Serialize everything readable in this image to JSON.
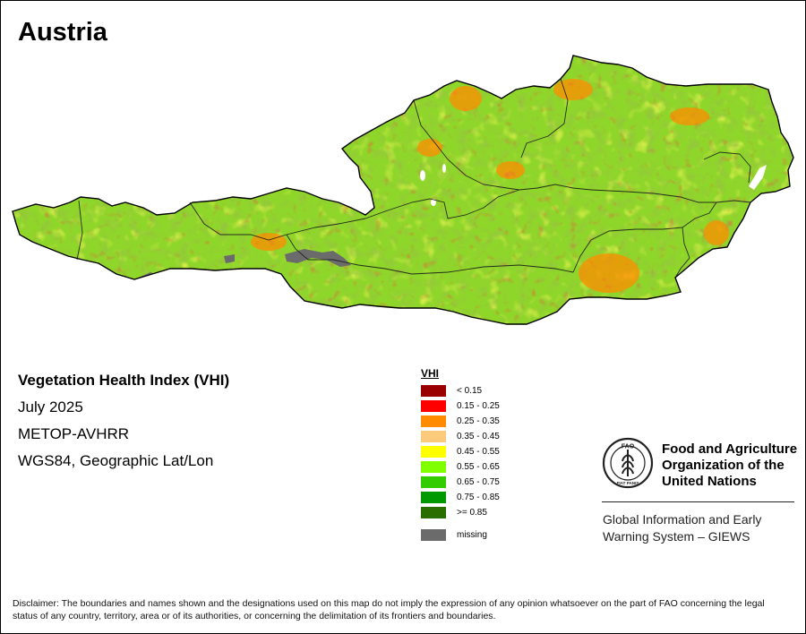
{
  "map": {
    "title": "Austria",
    "colors": {
      "background": "#ffffff",
      "border": "#000000",
      "lake": "#ffffff",
      "boundary": "#1a1a1a"
    }
  },
  "info": {
    "index_name": "Vegetation Health Index (VHI)",
    "period": "July 2025",
    "sensor": "METOP-AVHRR",
    "projection": "WGS84, Geographic Lat/Lon"
  },
  "legend": {
    "title": "VHI",
    "classes": [
      {
        "label": "< 0.15",
        "color": "#9b0000"
      },
      {
        "label": "0.15 - 0.25",
        "color": "#ff0000"
      },
      {
        "label": "0.25 - 0.35",
        "color": "#ff8c00"
      },
      {
        "label": "0.35 - 0.45",
        "color": "#fdc97a"
      },
      {
        "label": "0.45 - 0.55",
        "color": "#ffff00"
      },
      {
        "label": "0.55 - 0.65",
        "color": "#80ff00"
      },
      {
        "label": "0.65 - 0.75",
        "color": "#33cc00"
      },
      {
        "label": "0.75 - 0.85",
        "color": "#009900"
      },
      {
        "label": ">= 0.85",
        "color": "#2b6e00"
      }
    ],
    "missing": {
      "label": "missing",
      "color": "#6b6b6b"
    }
  },
  "org": {
    "logo_text": "FAO",
    "logo_motto": "FIAT PANIS",
    "name_lines": [
      "Food and Agriculture",
      "Organization of the",
      "United Nations"
    ],
    "program_lines": [
      "Global Information and Early",
      "Warning System – GIEWS"
    ],
    "logo_color": "#222222"
  },
  "disclaimer": "Disclaimer: The boundaries and names shown and the designations used on this map do not imply the expression of any opinion whatsoever on the part of FAO concerning the legal status of any country, territory, area or of its authorities, or concerning the delimitation of its frontiers and boundaries."
}
